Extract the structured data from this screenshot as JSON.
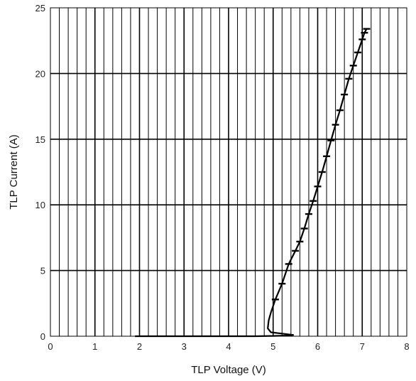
{
  "chart_data": {
    "type": "line",
    "title": "",
    "xlabel": "TLP Voltage (V)",
    "ylabel": "TLP Current (A)",
    "xlim": [
      0,
      8
    ],
    "ylim": [
      0,
      25
    ],
    "x_ticks": [
      0,
      1,
      2,
      3,
      4,
      5,
      6,
      7,
      8
    ],
    "y_ticks": [
      0,
      5,
      10,
      15,
      20,
      25
    ],
    "x_minor_grid_step": 0.2,
    "grid": true,
    "legend": "none",
    "series": [
      {
        "color": "#000000",
        "x": [
          1.9,
          3.0,
          4.0,
          4.6,
          5.0,
          5.3,
          5.45,
          5.2,
          4.95,
          4.88,
          4.9,
          4.95,
          5.05,
          5.2,
          5.35,
          5.5,
          5.6,
          5.7,
          5.8,
          5.9,
          6.0,
          6.1,
          6.2,
          6.3,
          6.4,
          6.5,
          6.6,
          6.7,
          6.8,
          6.9,
          7.0,
          7.05,
          7.1
        ],
        "y": [
          0.0,
          0.0,
          0.0,
          0.0,
          0.02,
          0.05,
          0.1,
          0.2,
          0.3,
          0.6,
          1.2,
          1.8,
          2.8,
          4.0,
          5.5,
          6.5,
          7.2,
          8.2,
          9.3,
          10.3,
          11.4,
          12.5,
          13.7,
          14.9,
          16.1,
          17.2,
          18.4,
          19.6,
          20.6,
          21.6,
          22.6,
          23.1,
          23.4
        ]
      }
    ]
  }
}
